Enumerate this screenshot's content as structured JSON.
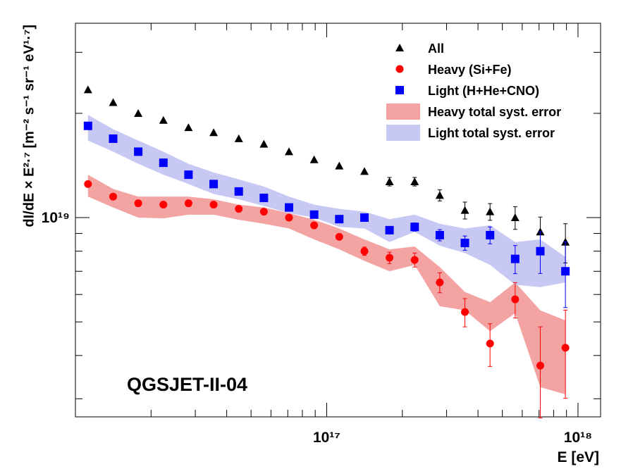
{
  "chart_data": {
    "type": "scatter",
    "y_label": "dI/dE × E²·⁷ [m⁻² s⁻¹ sr⁻¹ eV¹·⁷]",
    "x_label": "E [eV]",
    "annotation": "QGSJET-II-04",
    "log_x": true,
    "log_y": true,
    "legend": "top-right",
    "xlim": [
      1e+16,
      1.23e+18
    ],
    "ylim": [
      2.66e+18,
      3.64e+19
    ],
    "xticks": [
      {
        "value": 1e+17,
        "label": "10¹⁷"
      },
      {
        "value": 1e+18,
        "label": "10¹⁸"
      }
    ],
    "yticks": [
      {
        "value": 1e+19,
        "label": "10¹⁹"
      }
    ],
    "x": [
      1.122e+16,
      1.413e+16,
      1.778e+16,
      2.239e+16,
      2.818e+16,
      3.548e+16,
      4.467e+16,
      5.623e+16,
      7.079e+16,
      8.913e+16,
      1.122e+17,
      1.413e+17,
      1.778e+17,
      2.239e+17,
      2.818e+17,
      3.548e+17,
      4.467e+17,
      5.623e+17,
      7.079e+17,
      8.913e+17
    ],
    "series": [
      {
        "name": "All",
        "color": "#000000",
        "marker": "triangle",
        "values": [
          2.34e+19,
          2.15e+19,
          2e+19,
          1.91e+19,
          1.82e+19,
          1.76e+19,
          1.69e+19,
          1.63e+19,
          1.55e+19,
          1.47e+19,
          1.41e+19,
          1.36e+19,
          1.27e+19,
          1.27e+19,
          1.16e+19,
          1.05e+19,
          1.04e+19,
          1e+19,
          9.1e+18,
          8.5e+18
        ],
        "errors": [
          0,
          0,
          0,
          0,
          0,
          0,
          0,
          0,
          0,
          0,
          0,
          0,
          3.6e+17,
          3.6e+17,
          4.3e+17,
          5.9e+17,
          5.8e+17,
          7.5e+17,
          9.4e+17,
          1.1e+18
        ]
      },
      {
        "name": "Heavy (Si+Fe)",
        "color": "#ff0000",
        "marker": "circle",
        "values": [
          1.25e+19,
          1.15e+19,
          1.1e+19,
          1.09e+19,
          1.1e+19,
          1.09e+19,
          1.06e+19,
          1.04e+19,
          1e+19,
          9.5e+18,
          8.8e+18,
          8e+18,
          7.66e+18,
          7.55e+18,
          6.5e+18,
          5.34e+18,
          4.33e+18,
          5.81e+18,
          3.74e+18,
          4.21e+18
        ],
        "errors": [
          0,
          0,
          0,
          0,
          0,
          0,
          0,
          0,
          0,
          0,
          0,
          2.2e+17,
          2.9e+17,
          3.5e+17,
          4.3e+17,
          5e+17,
          6.1e+17,
          6.8e+17,
          1.1e+18,
          1.2e+18
        ]
      },
      {
        "name": "Light (H+He+CNO)",
        "color": "#0000ff",
        "marker": "square",
        "values": [
          1.84e+19,
          1.69e+19,
          1.55e+19,
          1.44e+19,
          1.33e+19,
          1.25e+19,
          1.19e+19,
          1.14e+19,
          1.07e+19,
          1.02e+19,
          9.9e+18,
          1e+19,
          9.2e+18,
          9.4e+18,
          8.9e+18,
          8.45e+18,
          8.9e+18,
          7.6e+18,
          8e+18,
          7e+18
        ],
        "errors": [
          0,
          0,
          0,
          0,
          0,
          0,
          0,
          0,
          0,
          0,
          0,
          0,
          2.2e+17,
          2.6e+17,
          3.3e+17,
          4e+17,
          5e+17,
          7.1e+17,
          1.1e+18,
          1.5e+18
        ]
      }
    ],
    "bands": [
      {
        "name": "Heavy total syst. error",
        "color": "#f4a3a3",
        "upper": [
          1.33e+19,
          1.21e+19,
          1.15e+19,
          1.15e+19,
          1.15e+19,
          1.13e+19,
          1.09e+19,
          1.07e+19,
          1.03e+19,
          9.86e+18,
          9.3e+18,
          8.65e+18,
          8.1e+18,
          8.25e+18,
          7.2e+18,
          6.1e+18,
          5.7e+18,
          6.5e+18,
          5.4e+18,
          5.05e+18
        ],
        "lower": [
          1.15e+19,
          1.07e+19,
          1e+19,
          9.95e+18,
          1.02e+19,
          1.02e+19,
          9.86e+18,
          9.6e+18,
          9.3e+18,
          8.65e+18,
          8.1e+18,
          7.5e+18,
          7e+18,
          7.3e+18,
          5.55e+18,
          5.4e+18,
          4.7e+18,
          5.3e+18,
          3.24e+18,
          3.09e+18
        ]
      },
      {
        "name": "Light total syst. error",
        "color": "#c8c8f5",
        "upper": [
          1.98e+19,
          1.8e+19,
          1.67e+19,
          1.55e+19,
          1.43e+19,
          1.35e+19,
          1.29e+19,
          1.23e+19,
          1.15e+19,
          1.09e+19,
          1.06e+19,
          1.04e+19,
          9.9e+18,
          1.02e+19,
          9.6e+18,
          9.3e+18,
          9.5e+18,
          8.5e+18,
          8.65e+18,
          7.7e+18
        ],
        "lower": [
          1.67e+19,
          1.55e+19,
          1.43e+19,
          1.33e+19,
          1.25e+19,
          1.17e+19,
          1.13e+19,
          1.08e+19,
          1.03e+19,
          1e+19,
          9.4e+18,
          9.3e+18,
          8.5e+18,
          9.1e+18,
          8.3e+18,
          7.9e+18,
          7.3e+18,
          6.4e+18,
          6.3e+18,
          6.5e+18
        ]
      }
    ]
  }
}
